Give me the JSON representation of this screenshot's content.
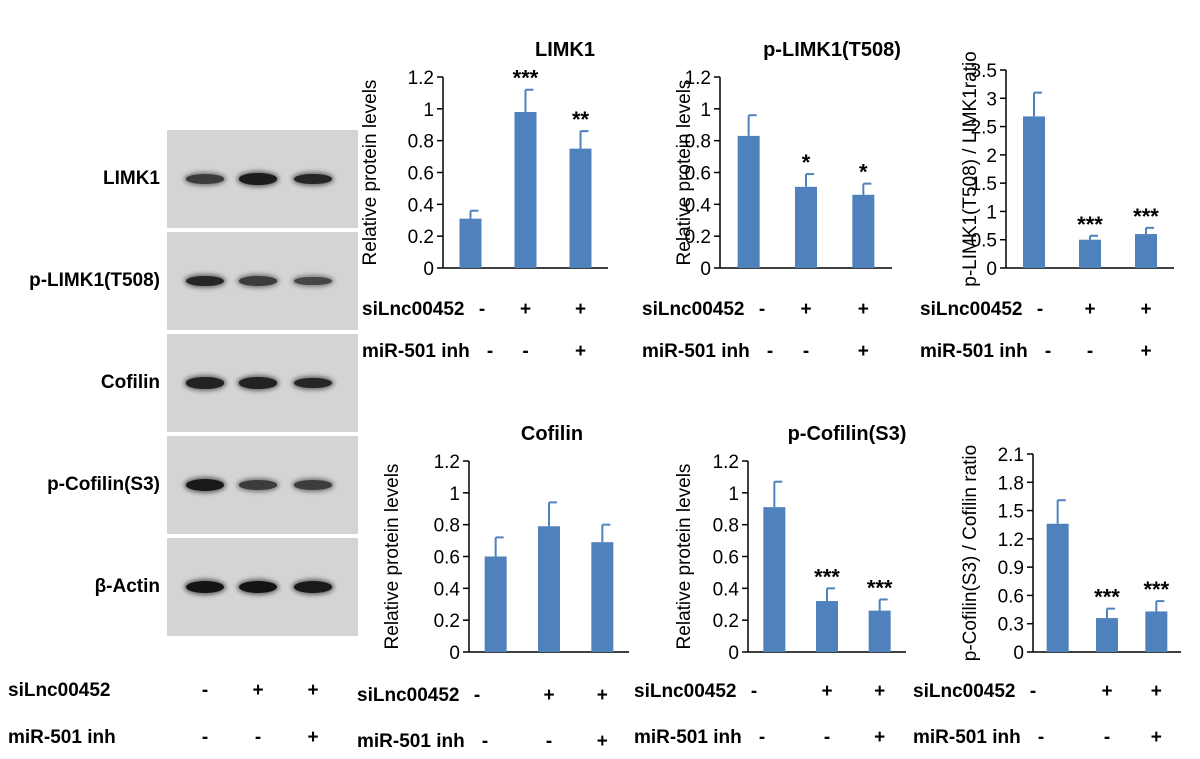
{
  "blot": {
    "rows": [
      {
        "label": "LIMK1",
        "intensities": [
          0.55,
          0.9,
          0.8
        ]
      },
      {
        "label": "p-LIMK1(T508)",
        "intensities": [
          0.8,
          0.55,
          0.45
        ]
      },
      {
        "label": "Cofilin",
        "intensities": [
          0.85,
          0.85,
          0.8
        ]
      },
      {
        "label": "p-Cofilin(S3)",
        "intensities": [
          0.95,
          0.55,
          0.55
        ]
      },
      {
        "label": "β-Actin",
        "intensities": [
          1.0,
          1.0,
          0.95
        ]
      }
    ],
    "conditions": [
      {
        "label": "siLnc00452",
        "signs": [
          "-",
          "+",
          "+"
        ]
      },
      {
        "label": "miR-501 inh",
        "signs": [
          "-",
          "-",
          "+"
        ]
      }
    ]
  },
  "chart_data": [
    {
      "type": "bar",
      "title": "LIMK1",
      "ylabel": "Relative protein levels",
      "ylim": [
        0,
        1.2
      ],
      "yticks": [
        "0",
        "0.2",
        "0.4",
        "0.6",
        "0.8",
        "1",
        "1.2"
      ],
      "categories": [
        "1",
        "2",
        "3"
      ],
      "values": [
        0.31,
        0.98,
        0.75
      ],
      "errors": [
        0.05,
        0.14,
        0.11
      ],
      "annotations": [
        "",
        "***",
        "**"
      ],
      "conditions": [
        {
          "label": "siLnc00452",
          "signs": [
            "-",
            "+",
            "+"
          ]
        },
        {
          "label": "miR-501 inh",
          "signs": [
            "-",
            "-",
            "+"
          ]
        }
      ],
      "bar_color": "#4f81bd"
    },
    {
      "type": "bar",
      "title": "p-LIMK1(T508)",
      "ylabel": "Relative protein levels",
      "ylim": [
        0,
        1.2
      ],
      "yticks": [
        "0",
        "0.2",
        "0.4",
        "0.6",
        "0.8",
        "1",
        "1.2"
      ],
      "categories": [
        "1",
        "2",
        "3"
      ],
      "values": [
        0.83,
        0.51,
        0.46
      ],
      "errors": [
        0.13,
        0.08,
        0.07
      ],
      "annotations": [
        "",
        "*",
        "*"
      ],
      "conditions": [
        {
          "label": "siLnc00452",
          "signs": [
            "-",
            "+",
            "+"
          ]
        },
        {
          "label": "miR-501 inh",
          "signs": [
            "-",
            "-",
            "+"
          ]
        }
      ],
      "bar_color": "#4f81bd"
    },
    {
      "type": "bar",
      "title": "",
      "ylabel": "p-LIMK1(T508) / LIMK1ratio",
      "ylim": [
        0,
        3.5
      ],
      "yticks": [
        "0",
        "0.5",
        "1",
        "1.5",
        "2",
        "2.5",
        "3",
        "3.5"
      ],
      "categories": [
        "1",
        "2",
        "3"
      ],
      "values": [
        2.68,
        0.5,
        0.6
      ],
      "errors": [
        0.42,
        0.07,
        0.11
      ],
      "annotations": [
        "",
        "***",
        "***"
      ],
      "conditions": [
        {
          "label": "siLnc00452",
          "signs": [
            "-",
            "+",
            "+"
          ]
        },
        {
          "label": "miR-501 inh",
          "signs": [
            "-",
            "-",
            "+"
          ]
        }
      ],
      "bar_color": "#4f81bd"
    },
    {
      "type": "bar",
      "title": "Cofilin",
      "ylabel": "Relative protein levels",
      "ylim": [
        0,
        1.2
      ],
      "yticks": [
        "0",
        "0.2",
        "0.4",
        "0.6",
        "0.8",
        "1",
        "1.2"
      ],
      "categories": [
        "1",
        "2",
        "3"
      ],
      "values": [
        0.6,
        0.79,
        0.69
      ],
      "errors": [
        0.12,
        0.15,
        0.11
      ],
      "annotations": [
        "",
        "",
        ""
      ],
      "conditions": [
        {
          "label": "siLnc00452",
          "signs": [
            "-",
            "+",
            "+"
          ]
        },
        {
          "label": "miR-501 inh",
          "signs": [
            "-",
            "-",
            "+"
          ]
        }
      ],
      "bar_color": "#4f81bd"
    },
    {
      "type": "bar",
      "title": "p-Cofilin(S3)",
      "ylabel": "Relative protein levels",
      "ylim": [
        0,
        1.2
      ],
      "yticks": [
        "0",
        "0.2",
        "0.4",
        "0.6",
        "0.8",
        "1",
        "1.2"
      ],
      "categories": [
        "1",
        "2",
        "3"
      ],
      "values": [
        0.91,
        0.32,
        0.26
      ],
      "errors": [
        0.16,
        0.08,
        0.07
      ],
      "annotations": [
        "",
        "***",
        "***"
      ],
      "conditions": [
        {
          "label": "siLnc00452",
          "signs": [
            "-",
            "+",
            "+"
          ]
        },
        {
          "label": "miR-501 inh",
          "signs": [
            "-",
            "-",
            "+"
          ]
        }
      ],
      "bar_color": "#4f81bd"
    },
    {
      "type": "bar",
      "title": "",
      "ylabel": "p-Cofilin(S3) / Cofilin ratio",
      "ylim": [
        0,
        2.1
      ],
      "yticks": [
        "0",
        "0.3",
        "0.6",
        "0.9",
        "1.2",
        "1.5",
        "1.8",
        "2.1"
      ],
      "categories": [
        "1",
        "2",
        "3"
      ],
      "values": [
        1.36,
        0.36,
        0.43
      ],
      "errors": [
        0.25,
        0.1,
        0.11
      ],
      "annotations": [
        "",
        "***",
        "***"
      ],
      "conditions": [
        {
          "label": "siLnc00452",
          "signs": [
            "-",
            "+",
            "+"
          ]
        },
        {
          "label": "miR-501 inh",
          "signs": [
            "-",
            "-",
            "+"
          ]
        }
      ],
      "bar_color": "#4f81bd"
    }
  ]
}
